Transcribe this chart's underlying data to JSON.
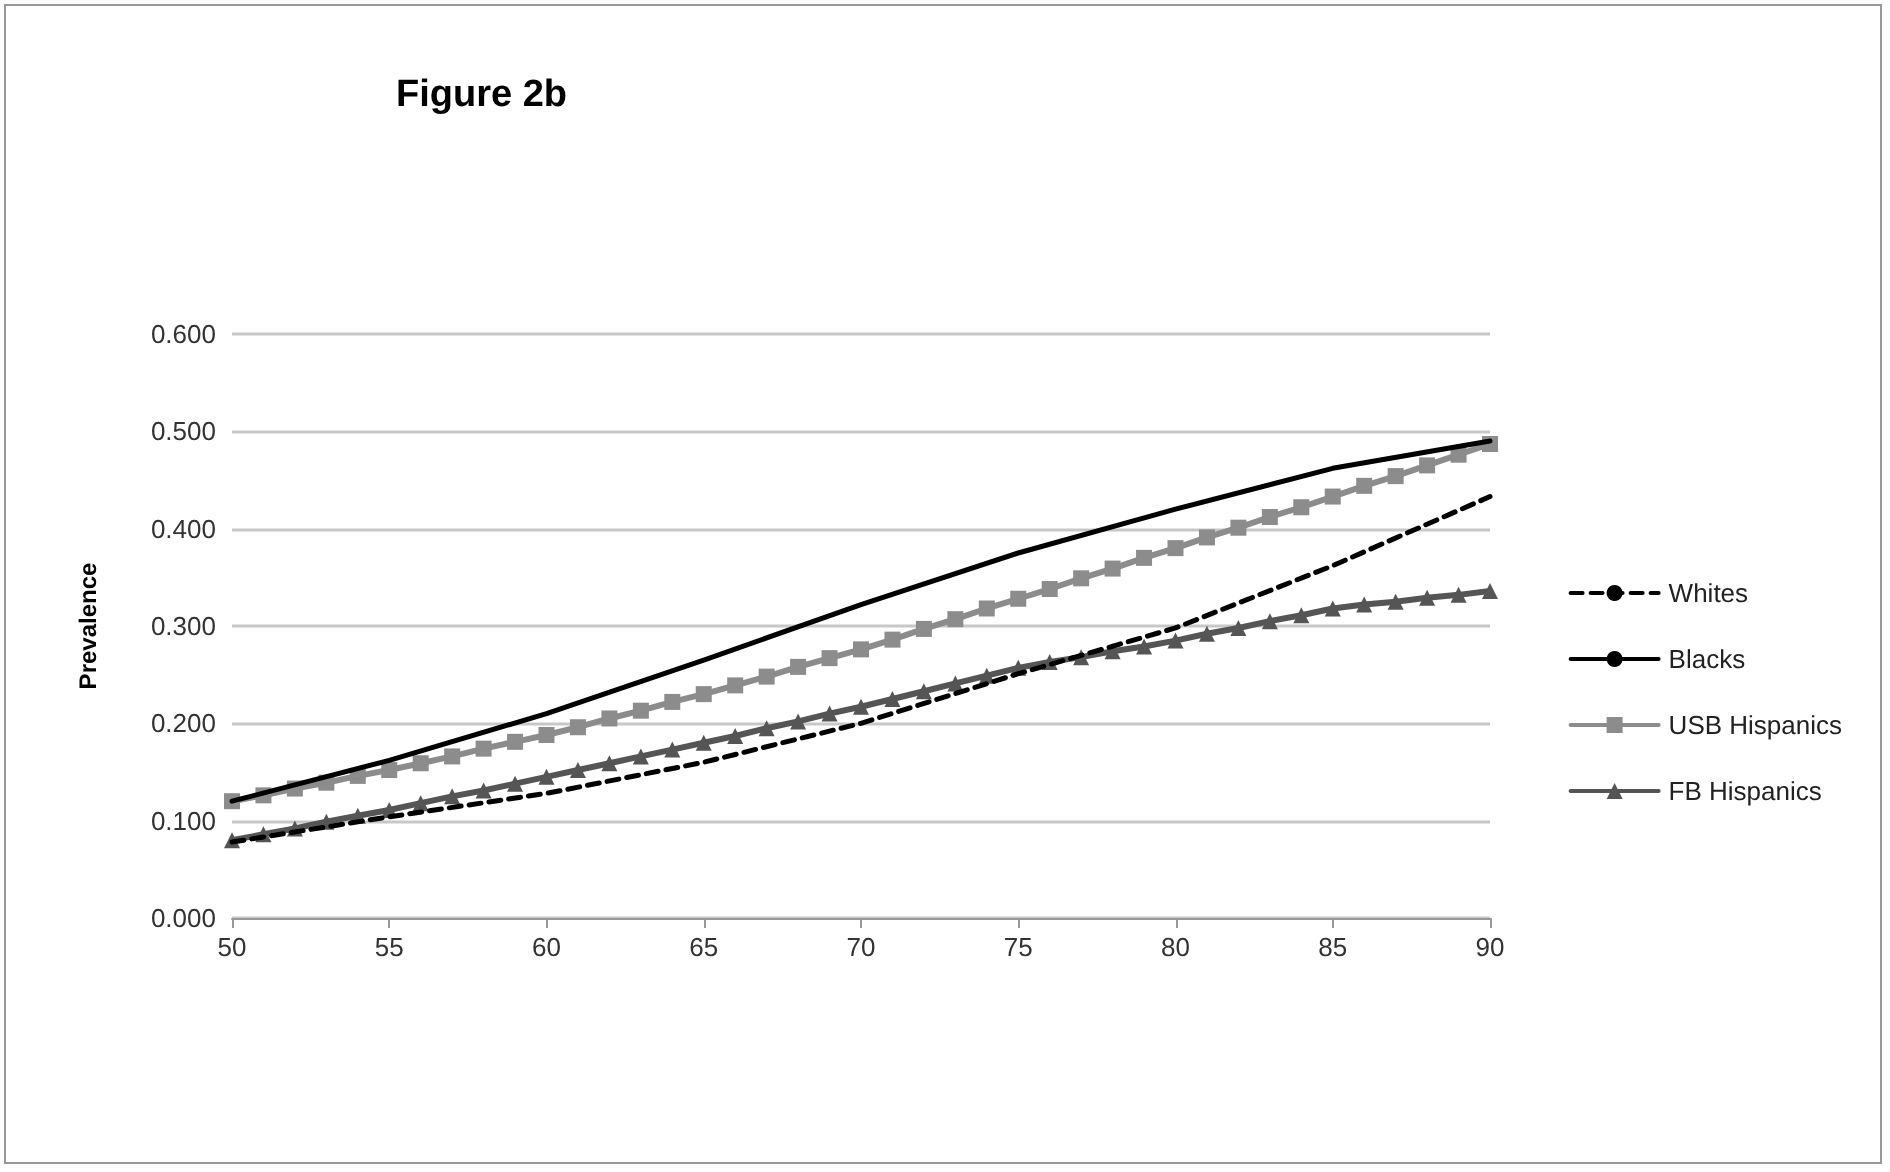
{
  "chart_data": {
    "type": "line",
    "title": "Figure 2b",
    "ylabel": "Prevalence",
    "xlim": [
      50,
      90
    ],
    "xticks": [
      50,
      55,
      60,
      65,
      70,
      75,
      80,
      85,
      90
    ],
    "ylim": [
      0,
      0.6
    ],
    "yticks": [
      {
        "value": 0,
        "label": "0.000"
      },
      {
        "value": 0.1,
        "label": "0.100"
      },
      {
        "value": 0.2,
        "label": "0.200"
      },
      {
        "value": 0.3,
        "label": "0.300"
      },
      {
        "value": 0.4,
        "label": "0.400"
      },
      {
        "value": 0.5,
        "label": "0.500"
      },
      {
        "value": 0.6,
        "label": "0.600"
      }
    ],
    "grid": "y",
    "legend": "right",
    "series": [
      {
        "name": "Whites",
        "color": "#000000",
        "line_style": "dashed",
        "marker": "none",
        "x": [
          50,
          55,
          60,
          65,
          70,
          75,
          80,
          85,
          90
        ],
        "values": [
          0.078,
          0.104,
          0.128,
          0.16,
          0.2,
          0.251,
          0.298,
          0.362,
          0.433
        ]
      },
      {
        "name": "Blacks",
        "color": "#000000",
        "line_style": "solid",
        "marker": "none",
        "x": [
          50,
          55,
          60,
          65,
          70,
          75,
          80,
          85,
          90
        ],
        "values": [
          0.12,
          0.162,
          0.21,
          0.265,
          0.322,
          0.375,
          0.42,
          0.462,
          0.49
        ]
      },
      {
        "name": "USB Hispanics",
        "color": "#8c8c8c",
        "line_style": "solid",
        "marker": "square",
        "x": [
          50,
          51,
          52,
          53,
          54,
          55,
          56,
          57,
          58,
          59,
          60,
          61,
          62,
          63,
          64,
          65,
          66,
          67,
          68,
          69,
          70,
          71,
          72,
          73,
          74,
          75,
          76,
          77,
          78,
          79,
          80,
          81,
          82,
          83,
          84,
          85,
          86,
          87,
          88,
          89,
          90
        ],
        "values": [
          0.12,
          0.126,
          0.133,
          0.139,
          0.146,
          0.152,
          0.159,
          0.166,
          0.174,
          0.181,
          0.188,
          0.196,
          0.205,
          0.213,
          0.222,
          0.23,
          0.239,
          0.248,
          0.258,
          0.267,
          0.276,
          0.286,
          0.297,
          0.307,
          0.318,
          0.328,
          0.338,
          0.349,
          0.359,
          0.37,
          0.38,
          0.391,
          0.401,
          0.412,
          0.422,
          0.433,
          0.444,
          0.454,
          0.465,
          0.476,
          0.487
        ]
      },
      {
        "name": "FB Hispanics",
        "color": "#555555",
        "line_style": "solid",
        "marker": "triangle",
        "x": [
          50,
          51,
          52,
          53,
          54,
          55,
          56,
          57,
          58,
          59,
          60,
          61,
          62,
          63,
          64,
          65,
          66,
          67,
          68,
          69,
          70,
          71,
          72,
          73,
          74,
          75,
          76,
          77,
          78,
          79,
          80,
          81,
          82,
          83,
          84,
          85,
          86,
          87,
          88,
          89,
          90
        ],
        "values": [
          0.08,
          0.086,
          0.092,
          0.099,
          0.105,
          0.111,
          0.118,
          0.125,
          0.131,
          0.138,
          0.145,
          0.152,
          0.159,
          0.166,
          0.173,
          0.18,
          0.187,
          0.195,
          0.202,
          0.21,
          0.217,
          0.225,
          0.233,
          0.241,
          0.249,
          0.257,
          0.263,
          0.268,
          0.274,
          0.279,
          0.285,
          0.292,
          0.298,
          0.305,
          0.311,
          0.318,
          0.322,
          0.325,
          0.329,
          0.332,
          0.336
        ]
      }
    ]
  }
}
